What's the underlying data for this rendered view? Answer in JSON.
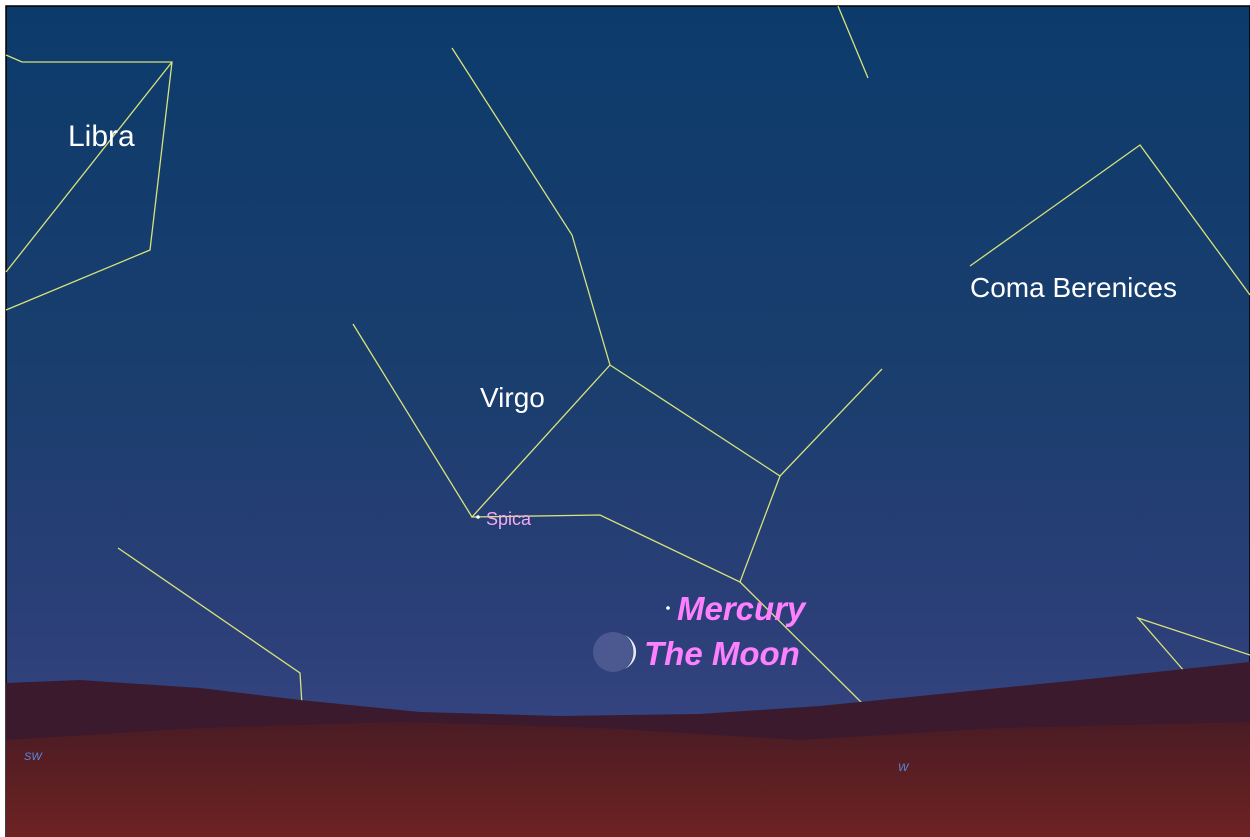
{
  "constellations": [
    {
      "label": "Libra"
    },
    {
      "label": "Virgo"
    },
    {
      "label": "Coma Berenices"
    }
  ],
  "stars": [
    {
      "label": "Spica"
    }
  ],
  "planets": [
    {
      "label": "Mercury"
    },
    {
      "label": "The Moon"
    }
  ],
  "compass": [
    {
      "label": "SW"
    },
    {
      "label": "W"
    }
  ]
}
